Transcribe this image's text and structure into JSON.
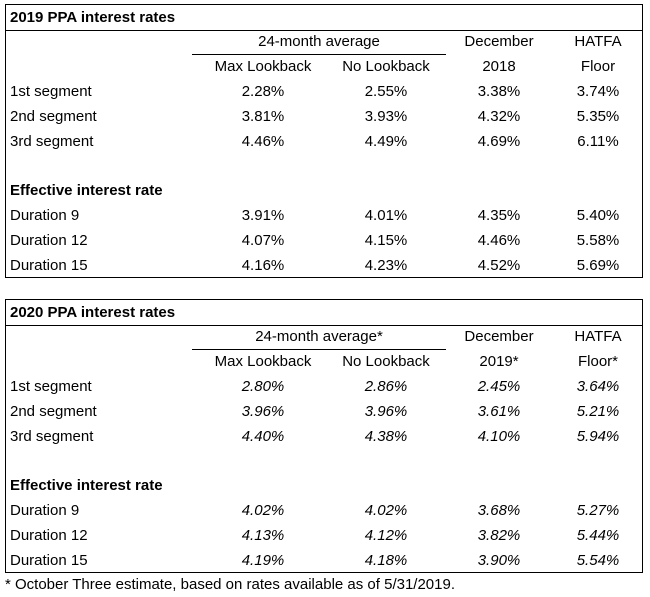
{
  "table_2019": {
    "title": "2019 PPA interest rates",
    "group_header": "24-month average",
    "col_max": "Max Lookback",
    "col_no": "No Lookback",
    "col_dec_line1": "December",
    "col_dec_line2": "2018",
    "col_hatfa_line1": "HATFA",
    "col_hatfa_line2": "Floor",
    "segments": [
      {
        "label": "1st segment",
        "max": "2.28%",
        "no": "2.55%",
        "dec": "3.38%",
        "hatfa": "3.74%"
      },
      {
        "label": "2nd segment",
        "max": "3.81%",
        "no": "3.93%",
        "dec": "4.32%",
        "hatfa": "5.35%"
      },
      {
        "label": "3rd segment",
        "max": "4.46%",
        "no": "4.49%",
        "dec": "4.69%",
        "hatfa": "6.11%"
      }
    ],
    "effective_heading": "Effective interest rate",
    "durations": [
      {
        "label": "Duration 9",
        "max": "3.91%",
        "no": "4.01%",
        "dec": "4.35%",
        "hatfa": "5.40%"
      },
      {
        "label": "Duration 12",
        "max": "4.07%",
        "no": "4.15%",
        "dec": "4.46%",
        "hatfa": "5.58%"
      },
      {
        "label": "Duration 15",
        "max": "4.16%",
        "no": "4.23%",
        "dec": "4.52%",
        "hatfa": "5.69%"
      }
    ]
  },
  "table_2020": {
    "title": "2020 PPA interest rates",
    "group_header": "24-month average*",
    "col_max": "Max Lookback",
    "col_no": "No Lookback",
    "col_dec_line1": "December",
    "col_dec_line2": "2019*",
    "col_hatfa_line1": "HATFA",
    "col_hatfa_line2": "Floor*",
    "segments": [
      {
        "label": "1st segment",
        "max": "2.80%",
        "no": "2.86%",
        "dec": "2.45%",
        "hatfa": "3.64%"
      },
      {
        "label": "2nd segment",
        "max": "3.96%",
        "no": "3.96%",
        "dec": "3.61%",
        "hatfa": "5.21%"
      },
      {
        "label": "3rd segment",
        "max": "4.40%",
        "no": "4.38%",
        "dec": "4.10%",
        "hatfa": "5.94%"
      }
    ],
    "effective_heading": "Effective interest rate",
    "durations": [
      {
        "label": "Duration 9",
        "max": "4.02%",
        "no": "4.02%",
        "dec": "3.68%",
        "hatfa": "5.27%"
      },
      {
        "label": "Duration 12",
        "max": "4.13%",
        "no": "4.12%",
        "dec": "3.82%",
        "hatfa": "5.44%"
      },
      {
        "label": "Duration 15",
        "max": "4.19%",
        "no": "4.18%",
        "dec": "3.90%",
        "hatfa": "5.54%"
      }
    ]
  },
  "footnote": "* October Three estimate, based on rates available as of 5/31/2019."
}
